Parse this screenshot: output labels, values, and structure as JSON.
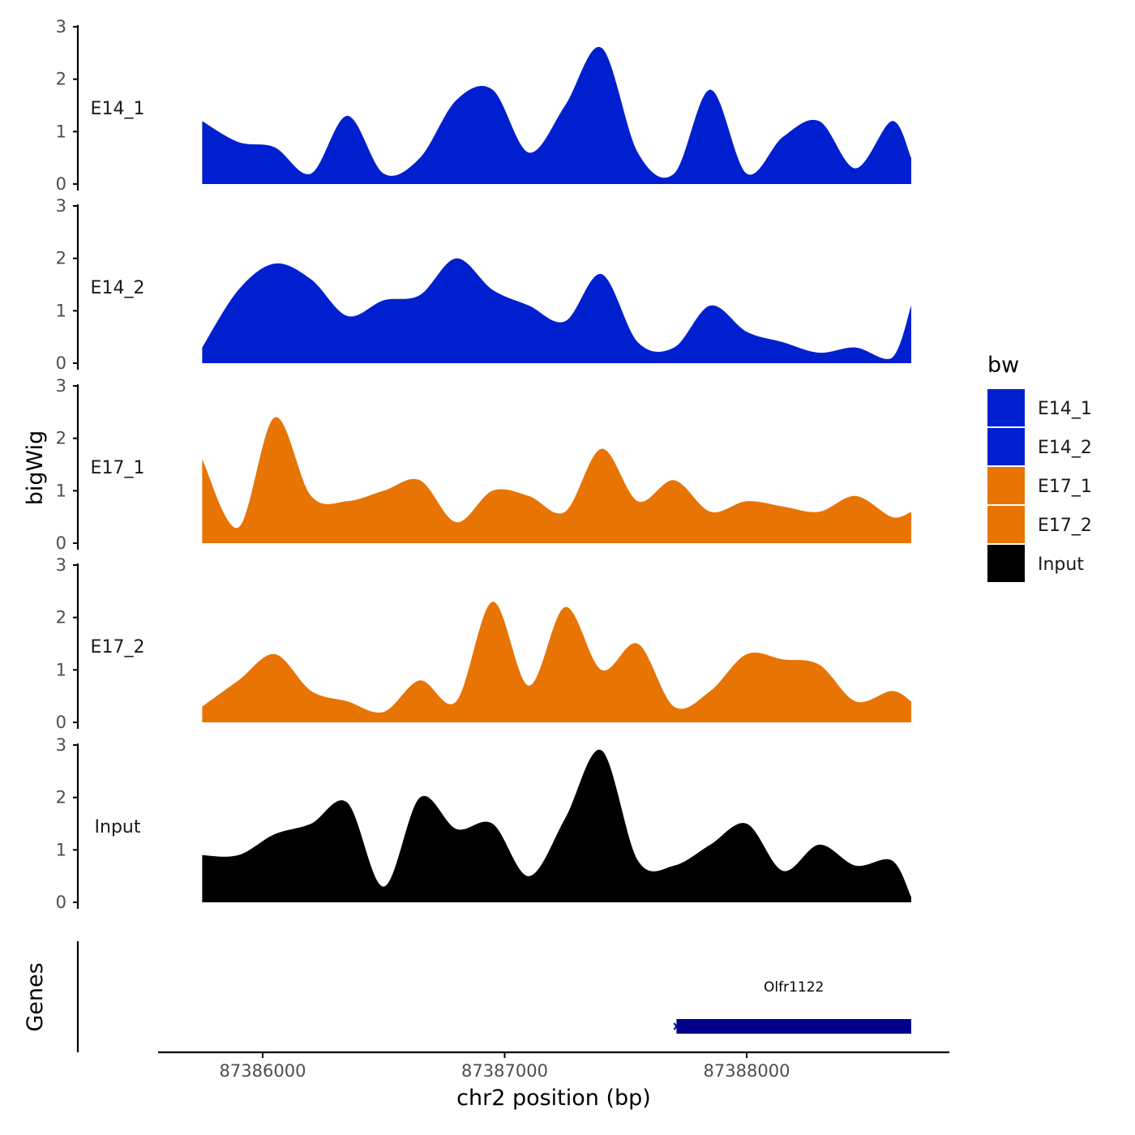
{
  "chart_data": {
    "type": "area",
    "title": "",
    "xlabel": "chr2 position (bp)",
    "ylabel": "bigWig",
    "genes_label": "Genes",
    "xlim": [
      87385550,
      87388850
    ],
    "x_ticks": [
      87386000,
      87387000,
      87388000
    ],
    "x_tick_labels": [
      "87386000",
      "87387000",
      "87388000"
    ],
    "ylim": [
      0,
      3
    ],
    "y_ticks": [
      0,
      1,
      2,
      3
    ],
    "y_tick_labels": [
      "0",
      "1",
      "2",
      "3"
    ],
    "x": [
      87385750,
      87385900,
      87386050,
      87386200,
      87386350,
      87386500,
      87386650,
      87386800,
      87386950,
      87387100,
      87387250,
      87387400,
      87387550,
      87387700,
      87387850,
      87388000,
      87388150,
      87388300,
      87388450,
      87388600,
      87388680
    ],
    "series": [
      {
        "name": "E14_1",
        "values": [
          1.2,
          0.8,
          0.7,
          0.2,
          1.3,
          0.2,
          0.5,
          1.6,
          1.8,
          0.6,
          1.5,
          2.6,
          0.6,
          0.2,
          1.8,
          0.2,
          0.9,
          1.2,
          0.3,
          1.2,
          0.5
        ]
      },
      {
        "name": "E14_2",
        "values": [
          0.3,
          1.4,
          1.9,
          1.6,
          0.9,
          1.2,
          1.3,
          2.0,
          1.4,
          1.1,
          0.8,
          1.7,
          0.4,
          0.3,
          1.1,
          0.6,
          0.4,
          0.2,
          0.3,
          0.1,
          1.1
        ]
      },
      {
        "name": "E17_1",
        "values": [
          1.6,
          0.3,
          2.4,
          0.9,
          0.8,
          1.0,
          1.2,
          0.4,
          1.0,
          0.9,
          0.6,
          1.8,
          0.8,
          1.2,
          0.6,
          0.8,
          0.7,
          0.6,
          0.9,
          0.5,
          0.6
        ]
      },
      {
        "name": "E17_2",
        "values": [
          0.3,
          0.8,
          1.3,
          0.6,
          0.4,
          0.2,
          0.8,
          0.4,
          2.3,
          0.7,
          2.2,
          1.0,
          1.5,
          0.3,
          0.6,
          1.3,
          1.2,
          1.1,
          0.4,
          0.6,
          0.4
        ]
      },
      {
        "name": "Input",
        "values": [
          0.9,
          0.9,
          1.3,
          1.5,
          1.9,
          0.3,
          2.0,
          1.4,
          1.5,
          0.5,
          1.6,
          2.9,
          0.8,
          0.7,
          1.1,
          1.5,
          0.6,
          1.1,
          0.7,
          0.8,
          0.1
        ]
      }
    ],
    "legend": {
      "title": "bw",
      "placement": "right",
      "entries": [
        {
          "name": "E14_1",
          "color": "#0020d0"
        },
        {
          "name": "E14_2",
          "color": "#0020d0"
        },
        {
          "name": "E17_1",
          "color": "#e87404"
        },
        {
          "name": "E17_2",
          "color": "#e87404"
        },
        {
          "name": "Input",
          "color": "#000000"
        }
      ]
    },
    "genes": [
      {
        "name": "Olfr1122",
        "start": 87387710,
        "end": 87388680,
        "color": "#00008b"
      }
    ]
  }
}
